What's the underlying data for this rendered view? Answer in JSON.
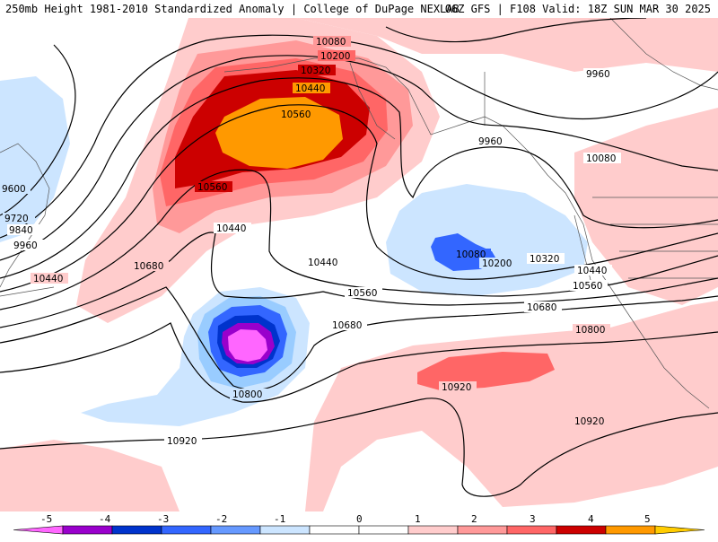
{
  "header": {
    "left": "250mb Height 1981-2010 Standardized Anomaly | College of DuPage NEXLAB",
    "right": "06Z GFS | F108 Valid: 18Z SUN MAR 30 2025"
  },
  "contour_labels": [
    "10080",
    "10200",
    "10320",
    "10440",
    "10560",
    "10560",
    "10440",
    "10440",
    "9960",
    "10080",
    "10200",
    "10320",
    "10440",
    "10560",
    "10680",
    "10800",
    "10920",
    "10920",
    "10680",
    "10560",
    "10680",
    "10800",
    "10920",
    "9960",
    "10080",
    "9600",
    "9720",
    "9840",
    "9960",
    "10440"
  ],
  "colorbar": {
    "ticks": [
      "-5",
      "-4",
      "-3",
      "-2",
      "-1",
      "0",
      "1",
      "2",
      "3",
      "4",
      "5"
    ],
    "colors": [
      "#ff66ff",
      "#9900cc",
      "#0033cc",
      "#3366ff",
      "#6699ff",
      "#cce5ff",
      "#ffffff",
      "#ffffff",
      "#ffcccc",
      "#ff9999",
      "#ff6666",
      "#cc0000",
      "#ff9900",
      "#ffcc00"
    ]
  },
  "palette": {
    "pos1": "#ffcccc",
    "pos2": "#ff9999",
    "pos3": "#ff6666",
    "pos4": "#cc0000",
    "pos5": "#ff9900",
    "neg1": "#cce5ff",
    "neg2": "#99ccff",
    "neg3": "#3366ff",
    "neg4": "#0033cc",
    "neg5": "#9900cc",
    "neg6": "#ff66ff"
  }
}
